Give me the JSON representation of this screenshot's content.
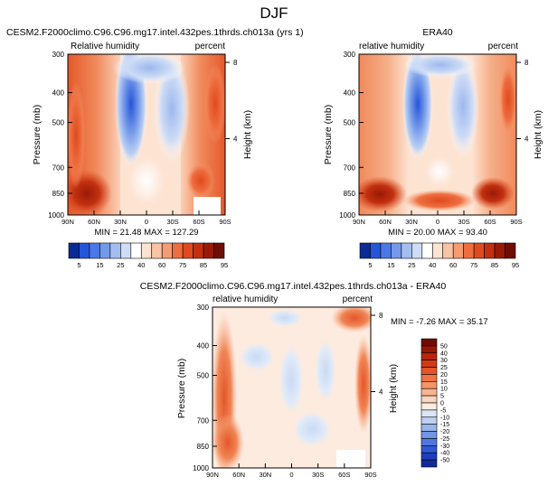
{
  "page_title": "DJF",
  "chart_data": [
    {
      "type": "heatmap",
      "title": "CESM2.F2000climo.C96.C96.mg17.intel.432pes.1thrds.ch013a (yrs 1)",
      "left_label": "Relative humidity",
      "right_label": "percent",
      "ylabel": "Pressure (mb)",
      "y2label": "Height (km)",
      "x_ticks": [
        "90N",
        "60N",
        "30N",
        "0",
        "30S",
        "60S",
        "90S"
      ],
      "y_ticks": [
        "300",
        "400",
        "500",
        "700",
        "850",
        "1000"
      ],
      "y2_ticks": [
        "8",
        "4"
      ],
      "ylim": [
        1000,
        300
      ],
      "stats": "MIN = 21.48   MAX = 127.29",
      "colorbar": {
        "orientation": "horizontal",
        "labels": [
          "5",
          "15",
          "25",
          "40",
          "60",
          "75",
          "85",
          "95"
        ],
        "colors": [
          "#0b2a96",
          "#2555d8",
          "#4a78e8",
          "#7499ea",
          "#a3bef0",
          "#cfdcf6",
          "#ffffff",
          "#fde3d2",
          "#f9c3a5",
          "#f59c72",
          "#ee6e3f",
          "#df4a1f",
          "#c23010",
          "#9b1a06",
          "#700d02"
        ]
      }
    },
    {
      "type": "heatmap",
      "title": "ERA40",
      "left_label": "relative humidity",
      "right_label": "percent",
      "ylabel": "Pressure (mb)",
      "y2label": "Height (km)",
      "x_ticks": [
        "90N",
        "60N",
        "30N",
        "0",
        "30S",
        "60S",
        "90S"
      ],
      "y_ticks": [
        "300",
        "400",
        "500",
        "700",
        "850",
        "1000"
      ],
      "y2_ticks": [
        "8",
        "4"
      ],
      "ylim": [
        1000,
        300
      ],
      "stats": "MIN = 20.00   MAX = 93.40",
      "colorbar": {
        "orientation": "horizontal",
        "labels": [
          "5",
          "15",
          "25",
          "40",
          "60",
          "75",
          "85",
          "95"
        ],
        "colors": [
          "#0b2a96",
          "#2555d8",
          "#4a78e8",
          "#7499ea",
          "#a3bef0",
          "#cfdcf6",
          "#ffffff",
          "#fde3d2",
          "#f9c3a5",
          "#f59c72",
          "#ee6e3f",
          "#df4a1f",
          "#c23010",
          "#9b1a06",
          "#700d02"
        ]
      }
    },
    {
      "type": "heatmap",
      "title": "CESM2.F2000climo.C96.C96.mg17.intel.432pes.1thrds.ch013a - ERA40",
      "left_label": "relative humidity",
      "right_label": "percent",
      "ylabel": "Pressure (mb)",
      "y2label": "Height (km)",
      "x_ticks": [
        "90N",
        "60N",
        "30N",
        "0",
        "30S",
        "60S",
        "90S"
      ],
      "y_ticks": [
        "300",
        "400",
        "500",
        "700",
        "850",
        "1000"
      ],
      "y2_ticks": [
        "8",
        "4"
      ],
      "ylim": [
        1000,
        300
      ],
      "stats": "MIN =  -7.26   MAX =  35.17",
      "colorbar": {
        "orientation": "vertical",
        "labels": [
          "50",
          "40",
          "30",
          "25",
          "20",
          "15",
          "10",
          "5",
          "0",
          "-5",
          "-10",
          "-15",
          "-20",
          "-25",
          "-30",
          "-40",
          "-50"
        ],
        "colors": [
          "#6e0c02",
          "#951705",
          "#b8260b",
          "#d23a16",
          "#e4562a",
          "#ef7345",
          "#f59466",
          "#f8b48f",
          "#fbd4bd",
          "#fdebe0",
          "#dbe6f7",
          "#bdd0f2",
          "#98b6ec",
          "#7196e6",
          "#4f78e0",
          "#3158d4",
          "#1d3dbc",
          "#102a9e"
        ]
      }
    }
  ]
}
